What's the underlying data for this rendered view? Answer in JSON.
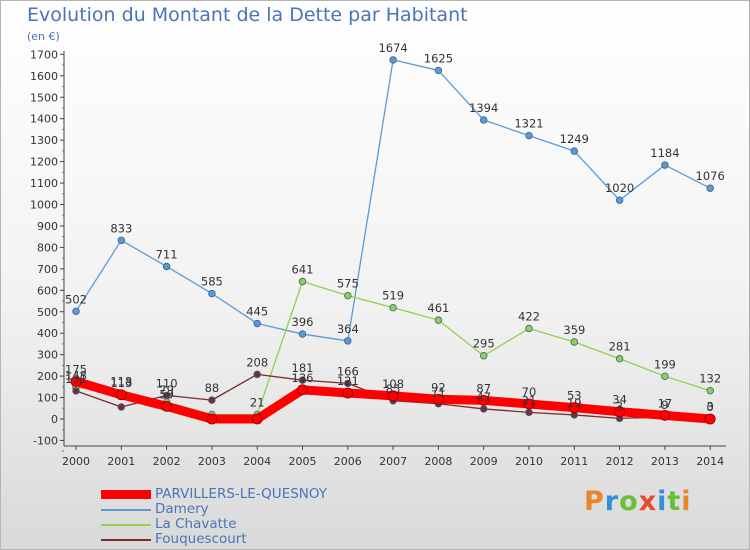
{
  "header": {
    "title": "Evolution du Montant de la Dette par Habitant",
    "unit": "(en €)"
  },
  "logo": {
    "letters": [
      "P",
      "r",
      "o",
      "x",
      "i",
      "t",
      "i"
    ],
    "colors": [
      "#e8862a",
      "#2f8fd8",
      "#6abf3a",
      "#e54b2a",
      "#2f8fd8",
      "#6abf3a",
      "#e8862a"
    ]
  },
  "chart_data": {
    "type": "line",
    "title": "Evolution du Montant de la Dette par Habitant",
    "ylabel": "(en €)",
    "xlabel": "",
    "x": [
      "2000",
      "2001",
      "2002",
      "2003",
      "2004",
      "2005",
      "2006",
      "2007",
      "2008",
      "2009",
      "2010",
      "2011",
      "2012",
      "2013",
      "2014"
    ],
    "yticks": [
      "-100",
      "0",
      "100",
      "200",
      "300",
      "400",
      "500",
      "600",
      "700",
      "800",
      "900",
      "1000",
      "1100",
      "1200",
      "1300",
      "1400",
      "1500",
      "1600",
      "1700"
    ],
    "ylim": [
      -100,
      1700
    ],
    "grid": false,
    "legend_position": "bottom-left",
    "series": [
      {
        "name": "PARVILLERS-LE-QUESNOY",
        "color": "#ff0000",
        "values": [
          175,
          113,
          59,
          0,
          0,
          136,
          121,
          108,
          92,
          87,
          70,
          53,
          34,
          17,
          0
        ],
        "labels": [
          "175",
          "113",
          "59",
          "",
          "",
          "136",
          "121",
          "108",
          "92",
          "87",
          "70",
          "53",
          "34",
          "17",
          "0"
        ]
      },
      {
        "name": "Damery",
        "color": "#5b9bd5",
        "values": [
          502,
          833,
          711,
          585,
          445,
          396,
          364,
          1674,
          1625,
          1394,
          1321,
          1249,
          1020,
          1184,
          1076
        ],
        "labels": [
          "502",
          "833",
          "711",
          "585",
          "445",
          "396",
          "364",
          "1674",
          "1625",
          "1394",
          "1321",
          "1249",
          "1020",
          "1184",
          "1076"
        ]
      },
      {
        "name": "La Chavatte",
        "color": "#92d050",
        "values": [
          148,
          118,
          79,
          21,
          21,
          641,
          575,
          519,
          461,
          295,
          422,
          359,
          281,
          199,
          132
        ],
        "labels": [
          "148",
          "118",
          "79",
          "",
          "21",
          "641",
          "575",
          "519",
          "461",
          "295",
          "422",
          "359",
          "281",
          "199",
          "132"
        ]
      },
      {
        "name": "Fouquescourt",
        "color": "#7b2c2c",
        "values": [
          131,
          56,
          110,
          88,
          208,
          181,
          166,
          85,
          71,
          47,
          31,
          19,
          3,
          9,
          3
        ],
        "labels": [
          "131",
          "",
          "110",
          "88",
          "208",
          "181",
          "166",
          "85",
          "71",
          "47",
          "31",
          "19",
          "3",
          "9",
          "3"
        ]
      }
    ]
  }
}
